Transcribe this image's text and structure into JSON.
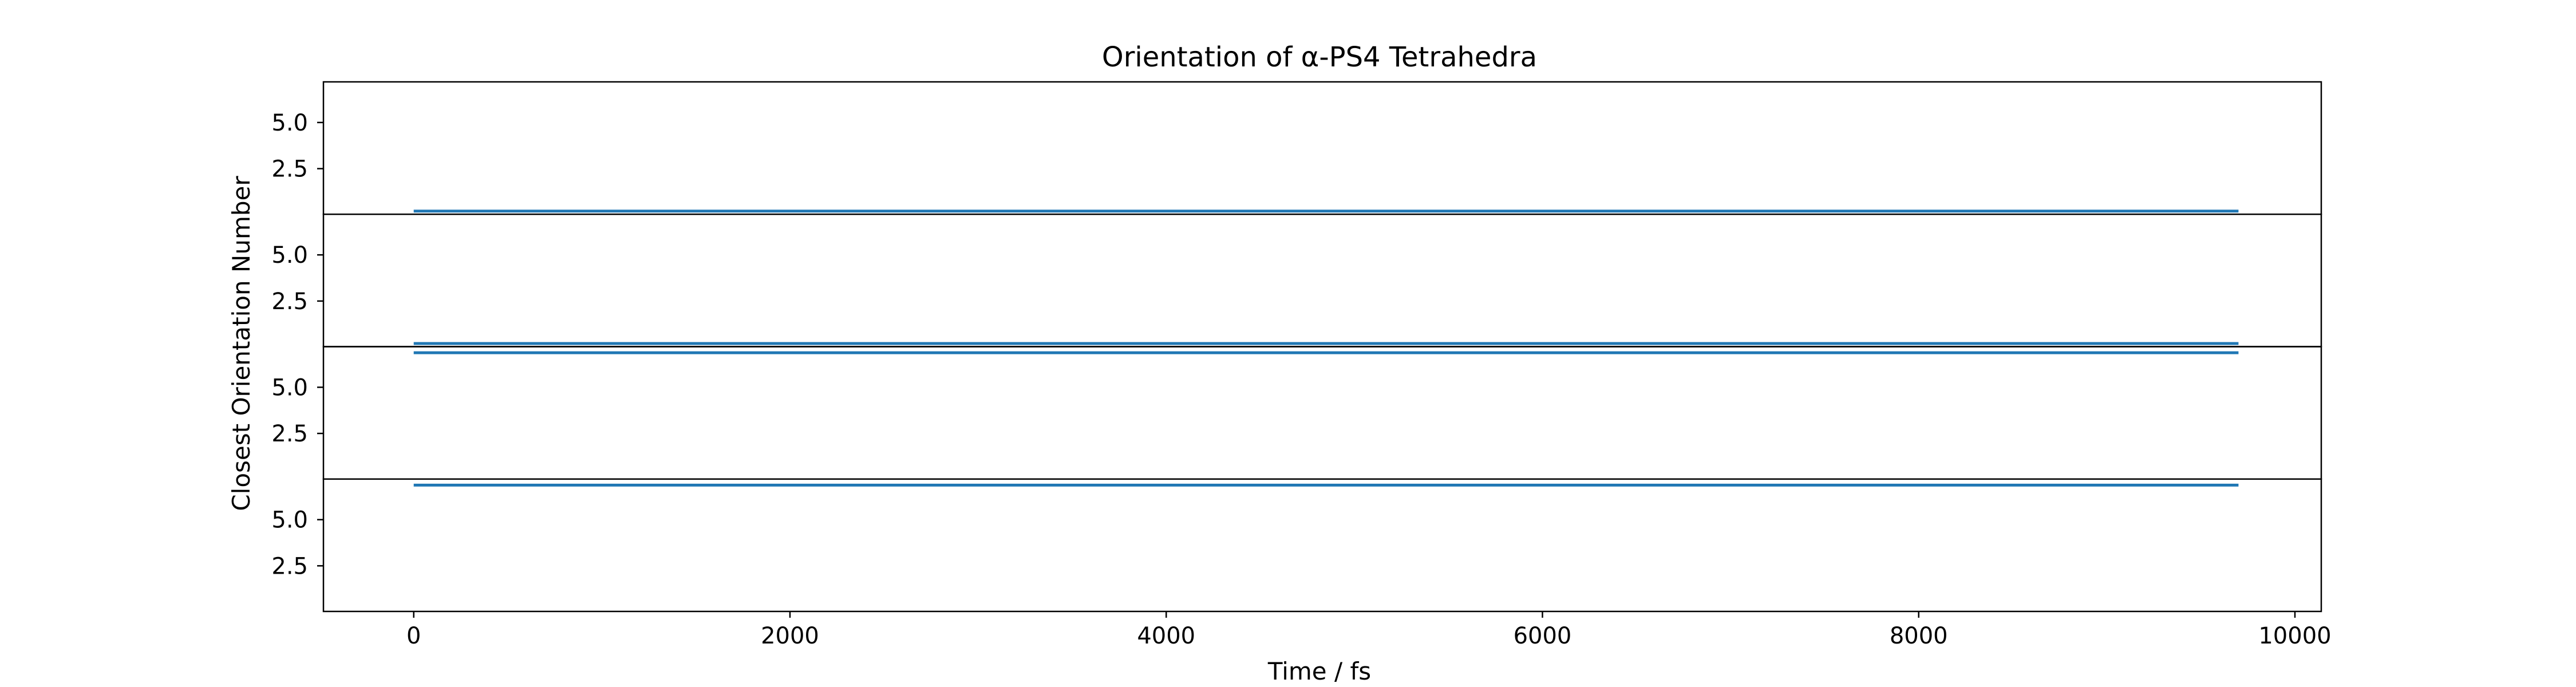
{
  "chart_data": {
    "type": "line",
    "title": "Orientation of α-PS4 Tetrahedra",
    "xlabel": "Time / fs",
    "ylabel": "Closest Orientation Number",
    "xlim": [
      -480,
      10140
    ],
    "x_ticks": [
      0,
      2000,
      4000,
      6000,
      8000,
      10000
    ],
    "x_tick_labels": [
      "0",
      "2000",
      "4000",
      "6000",
      "8000",
      "10000"
    ],
    "grid": false,
    "colors": {
      "series": "#1f77b4",
      "axes": "#000000",
      "background": "#ffffff"
    },
    "panels": [
      {
        "ylim": [
          7.2,
          0.03
        ],
        "y_ticks": [
          5.0,
          2.5
        ],
        "y_tick_labels": [
          "5.0",
          "2.5"
        ],
        "series": [
          {
            "x": [
              0,
              9700
            ],
            "y": [
              0.2,
              0.2
            ]
          }
        ]
      },
      {
        "ylim": [
          7.2,
          0.03
        ],
        "y_ticks": [
          5.0,
          2.5
        ],
        "y_tick_labels": [
          "5.0",
          "2.5"
        ],
        "series": [
          {
            "x": [
              0,
              9700
            ],
            "y": [
              0.2,
              0.2
            ]
          },
          {
            "x": [
              0,
              9700
            ],
            "y": [
              -0.3,
              -0.3
            ]
          }
        ]
      },
      {
        "ylim": [
          7.2,
          0.03
        ],
        "y_ticks": [
          5.0,
          2.5
        ],
        "y_tick_labels": [
          "5.0",
          "2.5"
        ],
        "series": [
          {
            "x": [
              0,
              9700
            ],
            "y": [
              -0.3,
              -0.3
            ]
          }
        ]
      },
      {
        "ylim": [
          7.2,
          0.03
        ],
        "y_ticks": [
          5.0,
          2.5
        ],
        "y_tick_labels": [
          "5.0",
          "2.5"
        ],
        "series": []
      }
    ]
  }
}
